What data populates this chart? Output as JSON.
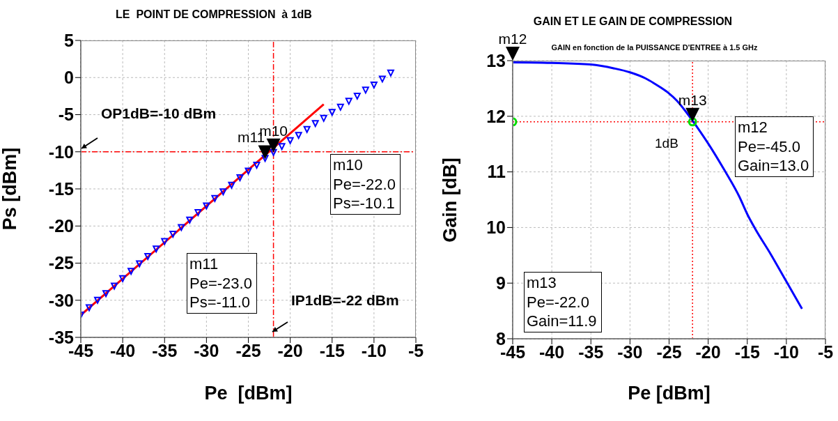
{
  "chart_data": [
    {
      "type": "scatter",
      "title": "LE  POINT DE COMPRESSION  à 1dB",
      "xlabel": "Pe  [dBm]",
      "ylabel": "Ps [dBm]",
      "xlim": [
        -45,
        -5
      ],
      "xticks": [
        -45,
        -40,
        -35,
        -30,
        -25,
        -20,
        -15,
        -10,
        -5
      ],
      "ylim": [
        -35,
        5
      ],
      "yticks": [
        -35,
        -30,
        -25,
        -20,
        -15,
        -10,
        -5,
        0,
        5
      ],
      "grid": true,
      "series": [
        {
          "marker": "triangle",
          "color": "#0000ff",
          "x": [
            -45,
            -44,
            -43,
            -42,
            -41,
            -40,
            -39,
            -38,
            -37,
            -36,
            -35,
            -34,
            -33,
            -32,
            -31,
            -30,
            -29,
            -28,
            -27,
            -26,
            -25,
            -24,
            -23,
            -22,
            -21,
            -20,
            -19,
            -18,
            -17,
            -16,
            -15,
            -14,
            -13,
            -12,
            -11,
            -10,
            -9,
            -8
          ],
          "values": [
            -32,
            -31,
            -30,
            -29.1,
            -28.1,
            -27.1,
            -26.1,
            -25.1,
            -24.1,
            -23.1,
            -22.1,
            -21.1,
            -20.2,
            -19.2,
            -18.2,
            -17.3,
            -16.3,
            -15.4,
            -14.5,
            -13.5,
            -12.6,
            -11.8,
            -10.9,
            -10.1,
            -9.3,
            -8.5,
            -7.8,
            -7,
            -6.2,
            -5.5,
            -4.7,
            -4,
            -3.2,
            -2.5,
            -1.7,
            -1,
            -0.2,
            0.6
          ]
        },
        {
          "type": "line",
          "marker": "none",
          "color": "#ff0000",
          "x": [
            -45,
            -16
          ],
          "values": [
            -32,
            -3.6
          ]
        }
      ],
      "ref_lines": [
        {
          "axis": "y",
          "value": -10,
          "color": "#ff0000",
          "line_style": "dashed"
        },
        {
          "axis": "x",
          "value": -22,
          "color": "#ff0000",
          "line_style": "dashed"
        }
      ],
      "annotations": [
        {
          "text": "m10",
          "x": -22,
          "y": -10.1
        },
        {
          "text": "m11",
          "x": -23,
          "y": -11
        },
        "m10\nPe=-22.0\nPs=-10.1",
        "m11\nPe=-23.0\nPs=-11.0",
        "OP1dB=-10 dBm",
        "IP1dB=-22 dBm"
      ]
    },
    {
      "type": "line",
      "title": "GAIN ET LE GAIN DE COMPRESSION",
      "subtitle": "GAIN en fonction de la PUISSANCE D'ENTREE à 1.5 GHz",
      "xlabel": "Pe [dBm]",
      "ylabel": "Gain [dB]",
      "xlim": [
        -45,
        -5
      ],
      "xticks": [
        -45,
        -40,
        -35,
        -30,
        -25,
        -20,
        -15,
        -10,
        -5
      ],
      "ylim": [
        8,
        13
      ],
      "yticks": [
        8,
        9,
        10,
        11,
        12,
        13
      ],
      "grid": true,
      "series": [
        {
          "marker": "none",
          "color": "#0000ff",
          "x": [
            -45,
            -40,
            -35,
            -32,
            -30,
            -28,
            -27,
            -26,
            -25,
            -24,
            -23,
            -22,
            -21,
            -20,
            -18,
            -16,
            -15,
            -14,
            -12,
            -10,
            -8
          ],
          "values": [
            12.97,
            12.96,
            12.93,
            12.86,
            12.79,
            12.68,
            12.6,
            12.51,
            12.41,
            12.28,
            12.11,
            11.92,
            11.72,
            11.51,
            11.05,
            10.55,
            10.24,
            9.98,
            9.52,
            9.03,
            8.54
          ]
        },
        {
          "type": "scatter",
          "marker": "circle",
          "color": "#00dd00",
          "x": [
            -45,
            -22
          ],
          "values": [
            11.9,
            11.9
          ]
        }
      ],
      "ref_lines": [
        {
          "axis": "y",
          "value": 11.9,
          "color": "#ff0000",
          "line_style": "dotted"
        },
        {
          "axis": "x",
          "value": -22,
          "color": "#ff0000",
          "line_style": "dotted"
        }
      ],
      "annotations": [
        {
          "text": "m12",
          "x": -45,
          "y": 13
        },
        {
          "text": "m13",
          "x": -22,
          "y": 11.9
        },
        "1dB",
        "m12\nPe=-45.0\nGain=13.0",
        "m13\nPe=-22.0\nGain=11.9"
      ]
    }
  ]
}
